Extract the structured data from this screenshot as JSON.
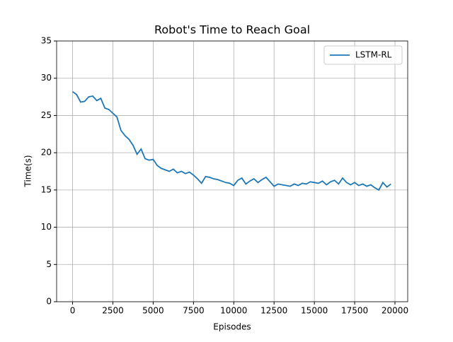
{
  "chart_data": {
    "type": "line",
    "title": "Robot's Time to Reach Goal",
    "xlabel": "Episodes",
    "ylabel": "Time(s)",
    "x": [
      0,
      250,
      500,
      750,
      1000,
      1250,
      1500,
      1750,
      2000,
      2250,
      2500,
      2750,
      3000,
      3250,
      3500,
      3750,
      4000,
      4250,
      4500,
      4750,
      5000,
      5250,
      5500,
      5750,
      6000,
      6250,
      6500,
      6750,
      7000,
      7250,
      7500,
      7750,
      8000,
      8250,
      8500,
      8750,
      9000,
      9250,
      9500,
      9750,
      10000,
      10250,
      10500,
      10750,
      11000,
      11250,
      11500,
      11750,
      12000,
      12250,
      12500,
      12750,
      13000,
      13250,
      13500,
      13750,
      14000,
      14250,
      14500,
      14750,
      15000,
      15250,
      15500,
      15750,
      16000,
      16250,
      16500,
      16750,
      17000,
      17250,
      17500,
      17750,
      18000,
      18250,
      18500,
      18750,
      19000,
      19250,
      19500,
      19750
    ],
    "series": [
      {
        "name": "LSTM-RL",
        "color": "#1f77b4",
        "values": [
          28.2,
          27.8,
          26.8,
          26.9,
          27.5,
          27.6,
          27.0,
          27.3,
          26.0,
          25.8,
          25.3,
          24.8,
          23.0,
          22.3,
          21.8,
          21.0,
          19.8,
          20.5,
          19.2,
          19.0,
          19.1,
          18.3,
          17.9,
          17.7,
          17.5,
          17.8,
          17.3,
          17.5,
          17.2,
          17.4,
          17.0,
          16.5,
          15.9,
          16.8,
          16.7,
          16.5,
          16.4,
          16.2,
          16.0,
          15.9,
          15.6,
          16.3,
          16.6,
          15.8,
          16.2,
          16.5,
          16.0,
          16.4,
          16.7,
          16.1,
          15.5,
          15.8,
          15.7,
          15.6,
          15.5,
          15.8,
          15.6,
          15.9,
          15.8,
          16.1,
          16.0,
          15.9,
          16.2,
          15.7,
          16.1,
          16.3,
          15.8,
          16.6,
          16.0,
          15.7,
          16.0,
          15.6,
          15.8,
          15.5,
          15.7,
          15.3,
          15.0,
          16.0,
          15.4,
          15.8
        ]
      }
    ],
    "xlim": [
      -990,
      20790
    ],
    "ylim": [
      0,
      35
    ],
    "xticks": [
      0,
      2500,
      5000,
      7500,
      10000,
      12500,
      15000,
      17500,
      20000
    ],
    "yticks": [
      0,
      5,
      10,
      15,
      20,
      25,
      30,
      35
    ],
    "grid": true,
    "legend": "upper right"
  }
}
